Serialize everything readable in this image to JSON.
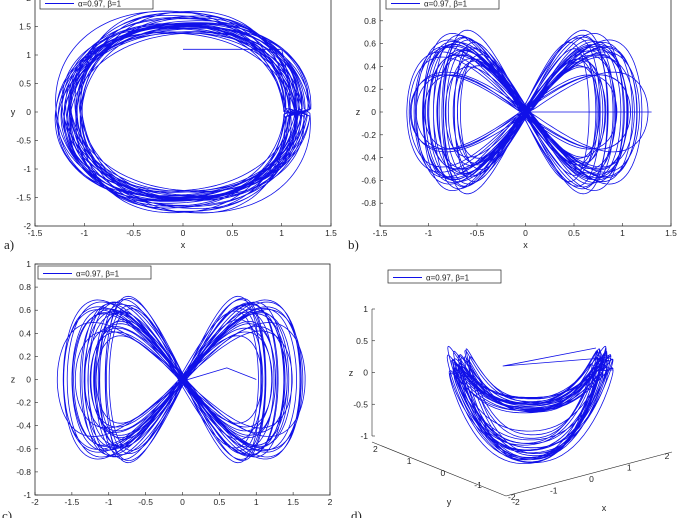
{
  "chart_data": [
    {
      "type": "line",
      "panel_label": "a)",
      "xlabel": "x",
      "ylabel": "y",
      "xlim": [
        -1.5,
        1.5
      ],
      "ylim": [
        -2,
        2
      ],
      "xticks": [
        -1.5,
        -1,
        -0.5,
        0,
        0.5,
        1,
        1.5
      ],
      "yticks": [
        -2,
        -1.5,
        -1,
        -0.5,
        0,
        0.5,
        1,
        1.5,
        2
      ],
      "legend": {
        "label": "α=0.97, β=1",
        "position": "top-left"
      },
      "series": [
        {
          "name": "α=0.97, β=1",
          "color": "#1010e8"
        }
      ]
    },
    {
      "type": "line",
      "panel_label": "b)",
      "xlabel": "x",
      "ylabel": "z",
      "xlim": [
        -1.5,
        1.5
      ],
      "ylim": [
        -1,
        1
      ],
      "xticks": [
        -1.5,
        -1,
        -0.5,
        0,
        0.5,
        1,
        1.5
      ],
      "yticks": [
        -0.8,
        -0.6,
        -0.4,
        -0.2,
        0,
        0.2,
        0.4,
        0.6,
        0.8
      ],
      "legend": {
        "label": "α=0.97, β=1",
        "position": "top-left"
      },
      "series": [
        {
          "name": "α=0.97, β=1",
          "color": "#1010e8"
        }
      ]
    },
    {
      "type": "line",
      "panel_label": "c)",
      "xlabel": "",
      "ylabel": "z",
      "xlim": [
        -2,
        2
      ],
      "ylim": [
        -1,
        1
      ],
      "xticks": [
        -2,
        -1.5,
        -1,
        -0.5,
        0,
        0.5,
        1,
        1.5,
        2
      ],
      "yticks": [
        -1,
        -0.8,
        -0.6,
        -0.4,
        -0.2,
        0,
        0.2,
        0.4,
        0.6,
        0.8,
        1
      ],
      "legend": {
        "label": "α=0.97, β=1",
        "position": "top-left"
      },
      "series": [
        {
          "name": "α=0.97, β=1",
          "color": "#1010e8"
        }
      ]
    },
    {
      "type": "line",
      "panel_label": "d)",
      "xlabel": "x",
      "ylabel": "y",
      "zlabel": "z",
      "xticks": [
        -2,
        -1,
        0,
        1,
        2
      ],
      "yticks": [
        -2,
        -1,
        0,
        1,
        2
      ],
      "zticks": [
        -1,
        -0.5,
        0,
        0.5,
        1
      ],
      "zlim": [
        -1,
        1
      ],
      "legend": {
        "label": "α=0.97, β=1",
        "position": "top-left"
      },
      "series": [
        {
          "name": "α=0.97, β=1",
          "color": "#1010e8"
        }
      ]
    }
  ]
}
